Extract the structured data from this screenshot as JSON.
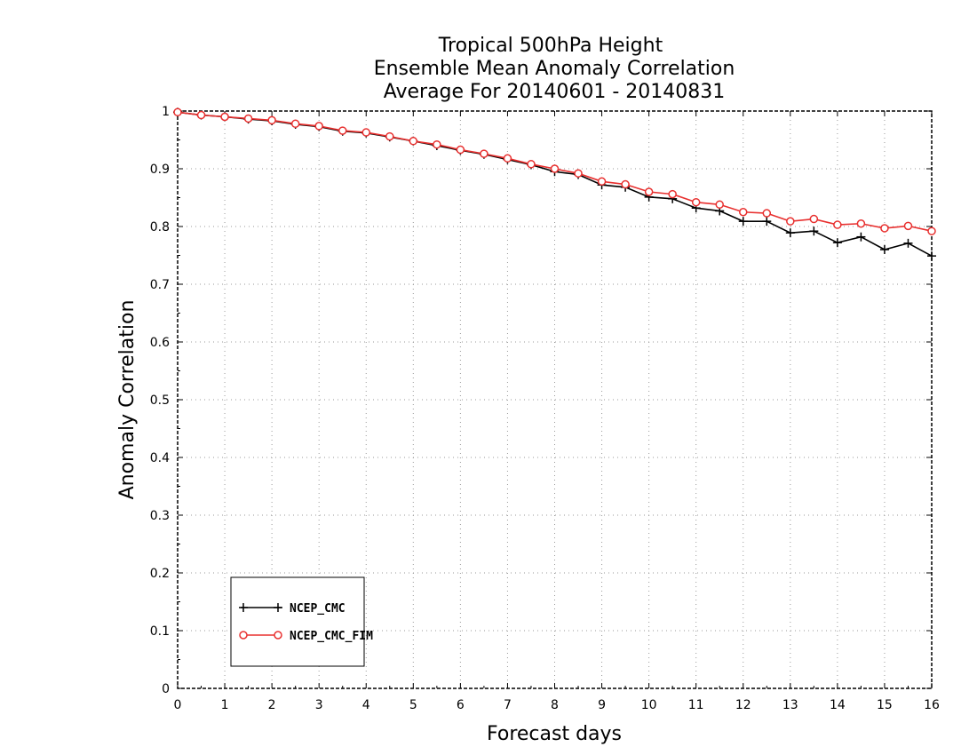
{
  "chart_data": {
    "type": "line",
    "title": [
      "Tropical 500hPa Height",
      "Ensemble Mean Anomaly Correlation",
      "Average For 20140601 - 20140831"
    ],
    "xlabel": "Forecast days",
    "ylabel": "Anomaly Correlation",
    "xlim": [
      0,
      16
    ],
    "ylim": [
      0,
      1
    ],
    "x_ticks": [
      "0",
      "1",
      "2",
      "3",
      "4",
      "5",
      "6",
      "7",
      "8",
      "9",
      "10",
      "11",
      "12",
      "13",
      "14",
      "15",
      "16"
    ],
    "y_ticks": [
      "0",
      "0.1",
      "0.2",
      "0.3",
      "0.4",
      "0.5",
      "0.6",
      "0.7",
      "0.8",
      "0.9",
      "1"
    ],
    "grid": true,
    "legend_position": "bottom-left",
    "x": [
      0,
      0.5,
      1,
      1.5,
      2,
      2.5,
      3,
      3.5,
      4,
      4.5,
      5,
      5.5,
      6,
      6.5,
      7,
      7.5,
      8,
      8.5,
      9,
      9.5,
      10,
      10.5,
      11,
      11.5,
      12,
      12.5,
      13,
      13.5,
      14,
      14.5,
      15,
      15.5,
      16
    ],
    "series": [
      {
        "name": "NCEP_CMC",
        "color": "#000000",
        "marker": "plus",
        "values": [
          0.998,
          0.993,
          0.99,
          0.986,
          0.983,
          0.977,
          0.973,
          0.965,
          0.962,
          0.955,
          0.948,
          0.94,
          0.932,
          0.925,
          0.916,
          0.907,
          0.895,
          0.89,
          0.872,
          0.868,
          0.851,
          0.848,
          0.832,
          0.827,
          0.809,
          0.809,
          0.789,
          0.792,
          0.772,
          0.782,
          0.76,
          0.771,
          0.749
        ]
      },
      {
        "name": "NCEP_CMC_FIM",
        "color": "#e8302f",
        "marker": "circle",
        "values": [
          0.998,
          0.993,
          0.99,
          0.987,
          0.984,
          0.978,
          0.974,
          0.966,
          0.963,
          0.956,
          0.948,
          0.942,
          0.933,
          0.926,
          0.918,
          0.908,
          0.9,
          0.892,
          0.878,
          0.873,
          0.86,
          0.856,
          0.842,
          0.838,
          0.825,
          0.823,
          0.809,
          0.813,
          0.803,
          0.805,
          0.797,
          0.801,
          0.792
        ]
      }
    ]
  }
}
